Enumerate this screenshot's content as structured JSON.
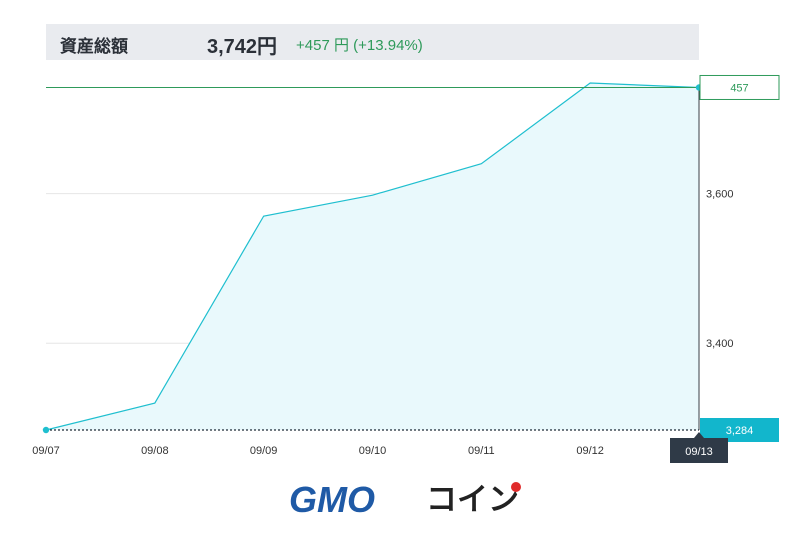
{
  "summary": {
    "title": "資産総額",
    "total": "3,742円",
    "change": "+457 円 (+13.94%)"
  },
  "chart_data": {
    "type": "area",
    "x": [
      "09/07",
      "09/08",
      "09/09",
      "09/10",
      "09/11",
      "09/12",
      "09/13"
    ],
    "points": [
      {
        "x": "09/07",
        "y": 3284
      },
      {
        "x": "09/08",
        "y": 3320
      },
      {
        "x": "09/09",
        "y": 3570
      },
      {
        "x": "09/10",
        "y": 3598
      },
      {
        "x": "09/11",
        "y": 3640
      },
      {
        "x": "09/12",
        "y": 3748
      },
      {
        "x": "09/13",
        "y": 3742
      }
    ],
    "y_ticks": [
      {
        "value": 3600,
        "label": "3,600"
      },
      {
        "value": 3400,
        "label": "3,400"
      }
    ],
    "ylim": [
      3284,
      3752
    ],
    "grid": true,
    "baseline": {
      "value": 3284,
      "label": "3,284"
    },
    "reference_line": {
      "value": 3742,
      "label": "457"
    },
    "highlight_x_label": "09/13",
    "colors": {
      "line": "#1fbfcf",
      "fill": "#e9f9fc",
      "reference": "#2e9a5a",
      "baseline_tag": "#12b6cc",
      "highlight_tag": "#2f3a47",
      "grid": "#e6e6e6"
    }
  },
  "logo": {
    "text": "GMO",
    "katakana": "コイン",
    "colors": {
      "gmo": "#1f5aa6",
      "katakana": "#222222",
      "dot": "#e02b2b"
    }
  }
}
